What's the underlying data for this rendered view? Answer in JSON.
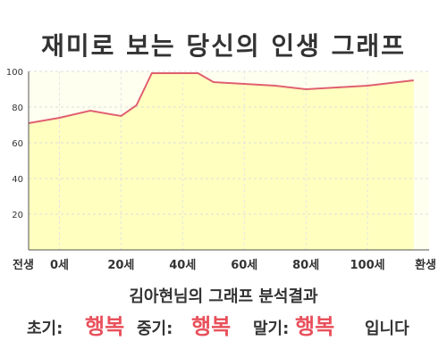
{
  "header": {
    "title": "재미로 보는 당신의 인생 그래프"
  },
  "chart_data": {
    "type": "area",
    "x": [
      -10,
      0,
      10,
      20,
      25,
      30,
      35,
      45,
      50,
      60,
      70,
      80,
      90,
      100,
      110,
      115
    ],
    "x_tick_labels": [
      {
        "x": -10,
        "label": "전생"
      },
      {
        "x": 0,
        "label": "0세"
      },
      {
        "x": 20,
        "label": "20세"
      },
      {
        "x": 40,
        "label": "40세"
      },
      {
        "x": 60,
        "label": "60세"
      },
      {
        "x": 80,
        "label": "80세"
      },
      {
        "x": 100,
        "label": "100세"
      },
      {
        "x": 120,
        "label": "환생"
      }
    ],
    "values": [
      71,
      74,
      78,
      75,
      81,
      99,
      99,
      99,
      94,
      93,
      92,
      90,
      91,
      92,
      94,
      95
    ],
    "ylim": [
      0,
      100
    ],
    "yticks": [
      20,
      40,
      60,
      80,
      100
    ],
    "xlim": [
      -10,
      120
    ],
    "fill_color": "#ffffc0",
    "plot_background": "#fffff0",
    "line_color": "#e06070",
    "grid": true
  },
  "footer": {
    "subtitle": "김아현님의 그래프 분석결과",
    "early_label": "초기:",
    "early_value": "행복",
    "mid_label": "중기:",
    "mid_value": "행복",
    "late_label": "말기:",
    "late_value": "행복",
    "ending": "입니다"
  }
}
